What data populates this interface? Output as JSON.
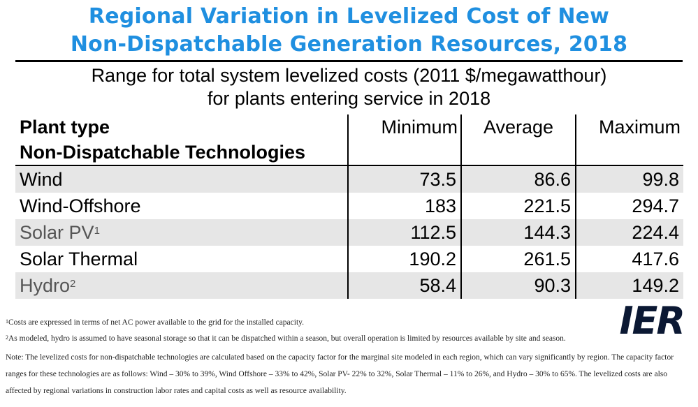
{
  "title": {
    "line1": "Regional Variation in Levelized Cost of New",
    "line2": "Non-Dispatchable Generation Resources, 2018"
  },
  "subtitle": {
    "line1": "Range for total system levelized costs (2011 $/megawatthour)",
    "line2": "for plants entering service in 2018"
  },
  "table": {
    "header": {
      "plant_type": "Plant type",
      "group": "Non-Dispatchable Technologies",
      "minimum": "Minimum",
      "average": "Average",
      "maximum": "Maximum"
    },
    "rows": [
      {
        "name": "Wind",
        "note": "",
        "minimum": "73.5",
        "average": "86.6",
        "maximum": "99.8"
      },
      {
        "name": "Wind-Offshore",
        "note": "",
        "minimum": "183",
        "average": "221.5",
        "maximum": "294.7"
      },
      {
        "name": "Solar PV",
        "note": "1",
        "minimum": "112.5",
        "average": "144.3",
        "maximum": "224.4"
      },
      {
        "name": "Solar Thermal",
        "note": "",
        "minimum": "190.2",
        "average": "261.5",
        "maximum": "417.6"
      },
      {
        "name": "Hydro",
        "note": "2",
        "minimum": "58.4",
        "average": "90.3",
        "maximum": "149.2"
      }
    ]
  },
  "logo": "IER",
  "footnotes": {
    "note1_mark": "1",
    "note1": "Costs are expressed in terms of net AC power available to the grid for the installed capacity.",
    "note2_mark": "2",
    "note2": "As modeled, hydro is assumed to have seasonal storage so that it can be dispatched within a season, but overall operation is limited by resources available by site and season.",
    "note3": "Note: The levelized costs for non-dispatchable technologies are calculated based on the capacity factor for the marginal site modeled in each region, which can vary significantly by region. The capacity factor ranges for these technologies are as follows: Wind – 30% to 39%, Wind Offshore – 33% to 42%, Solar PV- 22% to 32%, Solar Thermal – 11% to 26%, and Hydro – 30% to 65%. The levelized costs are also affected by regional variations in construction labor rates and capital costs as well as resource availability."
  }
}
